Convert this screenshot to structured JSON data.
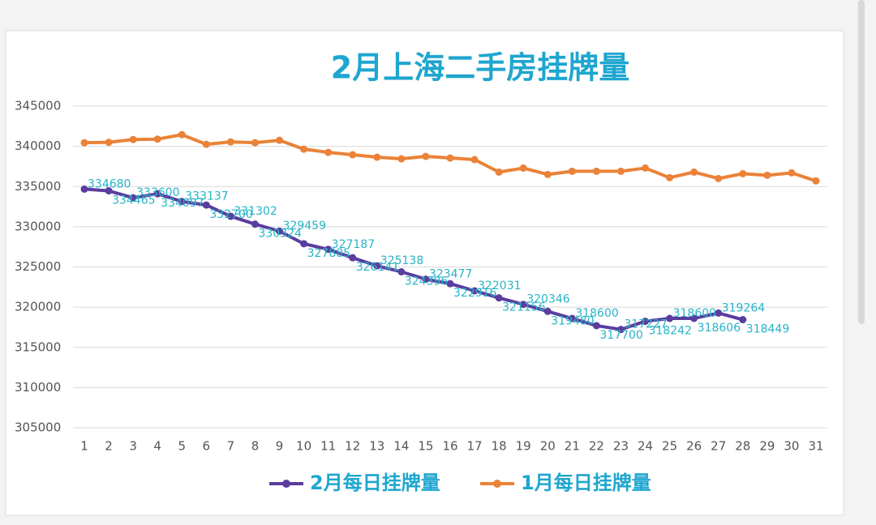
{
  "chart_data": {
    "type": "line",
    "title": "2月上海二手房挂牌量",
    "categories": [
      "1",
      "2",
      "3",
      "4",
      "5",
      "6",
      "7",
      "8",
      "9",
      "10",
      "11",
      "12",
      "13",
      "14",
      "15",
      "16",
      "17",
      "18",
      "19",
      "20",
      "21",
      "22",
      "23",
      "24",
      "25",
      "26",
      "27",
      "28",
      "29",
      "30",
      "31"
    ],
    "series": [
      {
        "name": "2月每日挂牌量",
        "color": "#5a3d9e",
        "show_labels": true,
        "label_color": "#27b3c8",
        "values": [
          334680,
          334465,
          333600,
          334097,
          333137,
          332700,
          331302,
          330324,
          329459,
          327885,
          327187,
          326141,
          325138,
          324396,
          323477,
          322916,
          322031,
          321156,
          320346,
          319480,
          318600,
          317700,
          317227,
          318242,
          318600,
          318606,
          319264,
          318449,
          null,
          null,
          null
        ]
      },
      {
        "name": "1月每日挂牌量",
        "color": "#ea8238",
        "values": [
          340450,
          340500,
          340850,
          340900,
          341450,
          340250,
          340550,
          340450,
          340750,
          339650,
          339250,
          338950,
          338650,
          338450,
          338750,
          338550,
          338350,
          336800,
          337300,
          336500,
          336900,
          336900,
          336900,
          337300,
          336100,
          336800,
          336000,
          336600,
          336400,
          336700,
          335700
        ]
      }
    ],
    "ylim": [
      305000,
      345000
    ],
    "yticks": [
      305000,
      310000,
      315000,
      320000,
      325000,
      330000,
      335000,
      340000,
      345000
    ],
    "grid": true,
    "legend": "bottom"
  }
}
